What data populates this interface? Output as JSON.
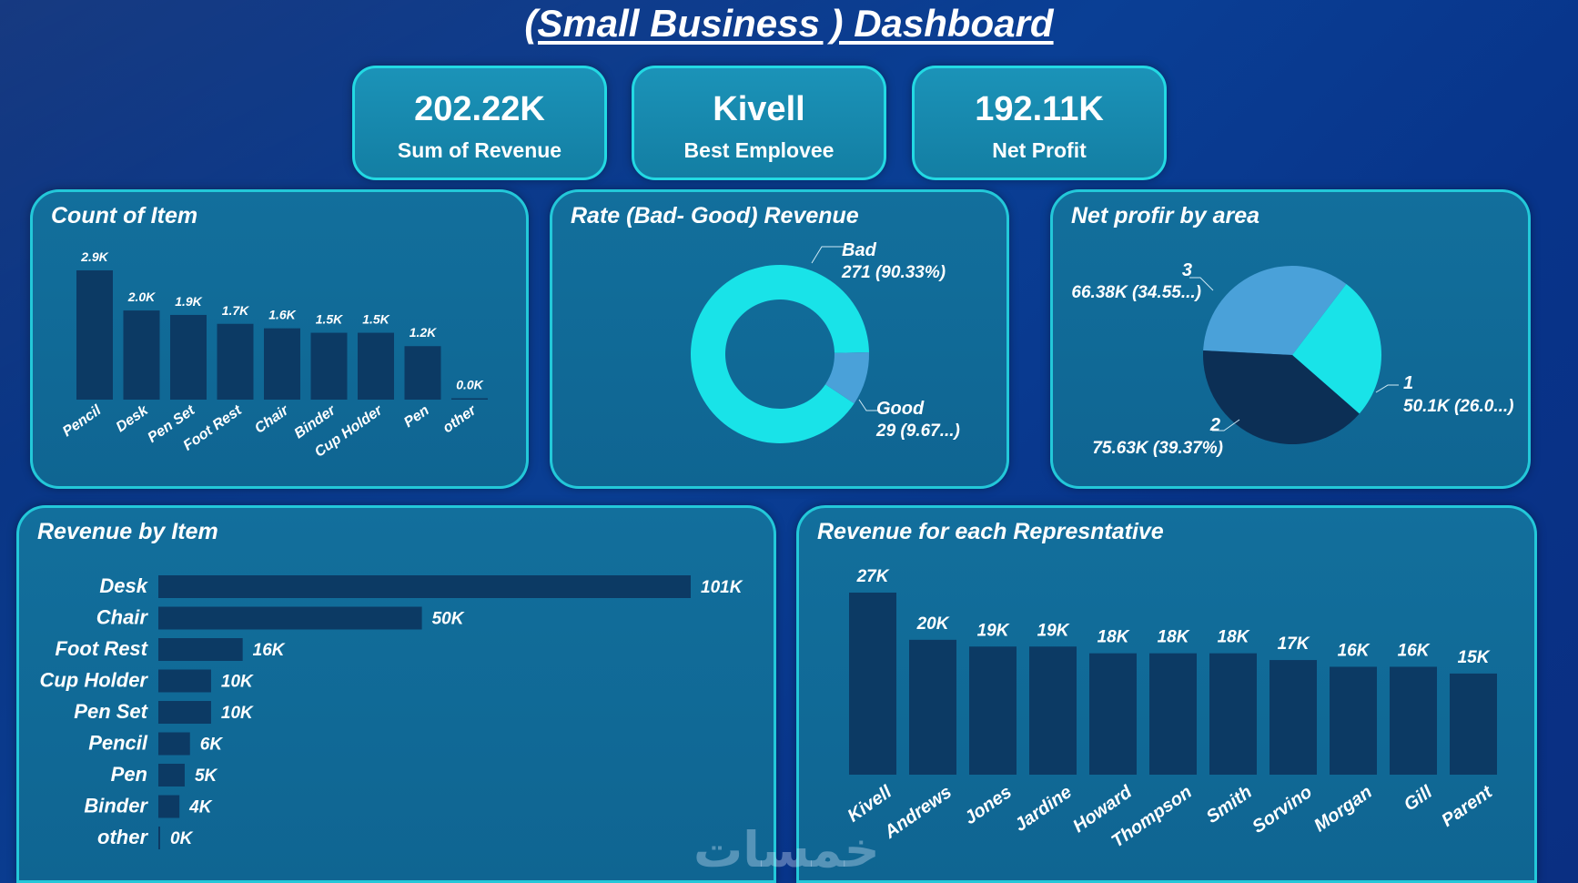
{
  "page_title": "(Small Business ) Dashboard",
  "kpis": [
    {
      "value": "202.22K",
      "label": "Sum of Revenue"
    },
    {
      "value": "Kivell",
      "label": "Best Emplovee"
    },
    {
      "value": "192.11K",
      "label": "Net Profit"
    }
  ],
  "colors": {
    "bar": "#0c3a64",
    "cyan": "#19e3e8",
    "light_blue": "#4aa1d9",
    "navy": "#0c2f55"
  },
  "watermark": "خمسات",
  "chart_data": [
    {
      "id": "count_of_item",
      "type": "bar",
      "title": "Count of Item",
      "categories": [
        "Pencil",
        "Desk",
        "Pen Set",
        "Foot Rest",
        "Chair",
        "Binder",
        "Cup Holder",
        "Pen",
        "other"
      ],
      "values": [
        2.9,
        2.0,
        1.9,
        1.7,
        1.6,
        1.5,
        1.5,
        1.2,
        0.0
      ],
      "data_labels": [
        "2.9K",
        "2.0K",
        "1.9K",
        "1.7K",
        "1.6K",
        "1.5K",
        "1.5K",
        "1.2K",
        "0.0K"
      ],
      "ylim": [
        0,
        2.9
      ]
    },
    {
      "id": "rate_revenue",
      "type": "pie",
      "title": "Rate (Bad- Good) Revenue",
      "donut": true,
      "slices": [
        {
          "name": "Bad",
          "value": 271,
          "label": "271 (90.33%)"
        },
        {
          "name": "Good",
          "value": 29,
          "label": "29 (9.67...)"
        }
      ]
    },
    {
      "id": "net_profit_area",
      "type": "pie",
      "title": "Net profir by area",
      "slices": [
        {
          "name": "3",
          "value": 66.38,
          "label": "66.38K (34.55...)"
        },
        {
          "name": "1",
          "value": 50.1,
          "label": "50.1K (26.0...)"
        },
        {
          "name": "2",
          "value": 75.63,
          "label": "75.63K (39.37%)"
        }
      ]
    },
    {
      "id": "revenue_by_item",
      "type": "bar",
      "orientation": "horizontal",
      "title": "Revenue by Item",
      "categories": [
        "Desk",
        "Chair",
        "Foot Rest",
        "Cup Holder",
        "Pen Set",
        "Pencil",
        "Pen",
        "Binder",
        "other"
      ],
      "values": [
        101,
        50,
        16,
        10,
        10,
        6,
        5,
        4,
        0
      ],
      "data_labels": [
        "101K",
        "50K",
        "16K",
        "10K",
        "10K",
        "6K",
        "5K",
        "4K",
        "0K"
      ],
      "xlim": [
        0,
        101
      ]
    },
    {
      "id": "revenue_rep",
      "type": "bar",
      "title": "Revenue for each Represntative",
      "categories": [
        "Kivell",
        "Andrews",
        "Jones",
        "Jardine",
        "Howard",
        "Thompson",
        "Smith",
        "Sorvino",
        "Morgan",
        "Gill",
        "Parent"
      ],
      "values": [
        27,
        20,
        19,
        19,
        18,
        18,
        18,
        17,
        16,
        16,
        15
      ],
      "data_labels": [
        "27K",
        "20K",
        "19K",
        "19K",
        "18K",
        "18K",
        "18K",
        "17K",
        "16K",
        "16K",
        "15K"
      ],
      "ylim": [
        0,
        27
      ]
    }
  ]
}
